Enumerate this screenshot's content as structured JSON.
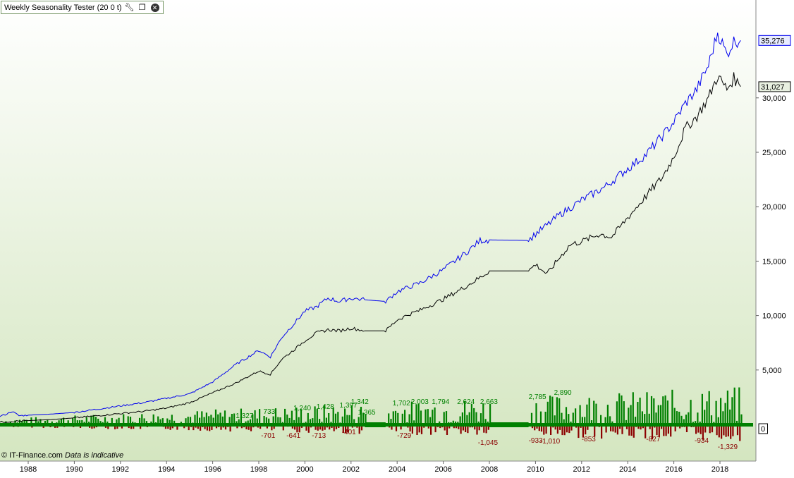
{
  "window": {
    "title": "Weekly Seasonality Tester (20 0 t)",
    "icons": [
      "wrench-icon",
      "restore-window-icon",
      "close-icon"
    ]
  },
  "footer": {
    "copyright": "© IT-Finance.com",
    "disclaimer": "Data is indicative"
  },
  "colors": {
    "background_top": "#ffffff",
    "background_bottom": "#d4e6c0",
    "blue_series": "#0000ee",
    "black_series": "#000000",
    "green_bars": "#008000",
    "red_bars": "#8b0000"
  },
  "chart_data": {
    "type": "line",
    "x_ticks": [
      "1988",
      "1990",
      "1992",
      "1994",
      "1996",
      "1998",
      "2000",
      "2002",
      "2004",
      "2006",
      "2008",
      "2010",
      "2012",
      "2014",
      "2016",
      "2018"
    ],
    "y_ticks": [
      "5,000",
      "10,000",
      "15,000",
      "20,000",
      "25,000",
      "30,000"
    ],
    "xlim": [
      1986.7,
      2019.5
    ],
    "ylim": [
      0,
      37000
    ],
    "last_value_labels": [
      {
        "series": "blue",
        "value": "35,276"
      },
      {
        "series": "black",
        "value": "31,027"
      },
      {
        "series": "bars",
        "value": "0"
      }
    ],
    "series": [
      {
        "color": "blue",
        "points": [
          [
            1986.7,
            700
          ],
          [
            1987.0,
            900
          ],
          [
            1987.3,
            1200
          ],
          [
            1987.6,
            800
          ],
          [
            1988.0,
            850
          ],
          [
            1989.0,
            950
          ],
          [
            1990.0,
            1100
          ],
          [
            1991.0,
            1400
          ],
          [
            1992.0,
            1700
          ],
          [
            1993.0,
            2000
          ],
          [
            1994.0,
            2400
          ],
          [
            1995.0,
            2800
          ],
          [
            1996.0,
            3900
          ],
          [
            1997.0,
            5500
          ],
          [
            1998.0,
            6800
          ],
          [
            1998.5,
            6200
          ],
          [
            1999.0,
            8000
          ],
          [
            1999.5,
            9200
          ],
          [
            2000.0,
            10400
          ],
          [
            2000.5,
            10800
          ],
          [
            2001.0,
            11600
          ],
          [
            2001.5,
            11300
          ],
          [
            2002.0,
            11600
          ],
          [
            2002.6,
            11450
          ],
          [
            2003.5,
            11300
          ],
          [
            2004.0,
            12200
          ],
          [
            2004.5,
            12600
          ],
          [
            2005.0,
            13000
          ],
          [
            2006.0,
            14200
          ],
          [
            2007.0,
            15800
          ],
          [
            2007.6,
            16900
          ],
          [
            2008.0,
            16950
          ],
          [
            2009.7,
            16900
          ],
          [
            2010.0,
            17500
          ],
          [
            2010.5,
            18300
          ],
          [
            2011.0,
            19200
          ],
          [
            2011.5,
            19900
          ],
          [
            2012.0,
            20600
          ],
          [
            2013.0,
            21800
          ],
          [
            2014.0,
            23500
          ],
          [
            2014.8,
            24800
          ],
          [
            2015.5,
            26500
          ],
          [
            2016.0,
            27800
          ],
          [
            2016.5,
            29500
          ],
          [
            2017.0,
            30800
          ],
          [
            2017.5,
            33000
          ],
          [
            2017.9,
            36000
          ],
          [
            2018.3,
            34000
          ],
          [
            2018.6,
            35200
          ],
          [
            2018.9,
            35276
          ]
        ]
      },
      {
        "color": "black",
        "points": [
          [
            1986.7,
            200
          ],
          [
            1987.5,
            300
          ],
          [
            1988.0,
            350
          ],
          [
            1989.0,
            450
          ],
          [
            1990.0,
            600
          ],
          [
            1991.0,
            800
          ],
          [
            1992.0,
            1000
          ],
          [
            1993.0,
            1200
          ],
          [
            1994.0,
            1500
          ],
          [
            1995.0,
            2000
          ],
          [
            1996.0,
            2900
          ],
          [
            1997.0,
            3800
          ],
          [
            1998.0,
            4900
          ],
          [
            1998.5,
            4600
          ],
          [
            1999.0,
            6000
          ],
          [
            1999.5,
            6800
          ],
          [
            2000.0,
            7700
          ],
          [
            2000.5,
            8400
          ],
          [
            2001.0,
            8700
          ],
          [
            2001.5,
            8600
          ],
          [
            2002.0,
            8850
          ],
          [
            2002.6,
            8600
          ],
          [
            2003.5,
            8600
          ],
          [
            2004.0,
            9600
          ],
          [
            2004.5,
            10100
          ],
          [
            2005.0,
            10500
          ],
          [
            2006.0,
            11500
          ],
          [
            2007.0,
            12700
          ],
          [
            2007.6,
            13500
          ],
          [
            2008.0,
            14100
          ],
          [
            2009.7,
            14100
          ],
          [
            2010.0,
            14700
          ],
          [
            2010.5,
            13800
          ],
          [
            2011.0,
            15200
          ],
          [
            2011.5,
            16500
          ],
          [
            2012.0,
            16800
          ],
          [
            2012.8,
            17500
          ],
          [
            2013.3,
            17200
          ],
          [
            2014.0,
            19000
          ],
          [
            2014.8,
            21000
          ],
          [
            2015.5,
            22700
          ],
          [
            2016.0,
            24600
          ],
          [
            2016.5,
            27200
          ],
          [
            2017.0,
            28300
          ],
          [
            2017.5,
            30000
          ],
          [
            2017.9,
            32000
          ],
          [
            2018.3,
            30800
          ],
          [
            2018.6,
            31800
          ],
          [
            2018.9,
            31027
          ]
        ]
      }
    ],
    "bar_labels_green": [
      "1,327",
      "733",
      "1,240",
      "1,428",
      "1,397",
      "1,342",
      "1,365",
      "1,702",
      "2,003",
      "1,794",
      "2,624",
      "2,663",
      "2,785",
      "2,890"
    ],
    "bar_labels_red": [
      "-701",
      "-641",
      "-713",
      "-401",
      "-729",
      "-1,045",
      "-933",
      "-1,010",
      "-853",
      "-827",
      "-934",
      "-1,329"
    ]
  }
}
